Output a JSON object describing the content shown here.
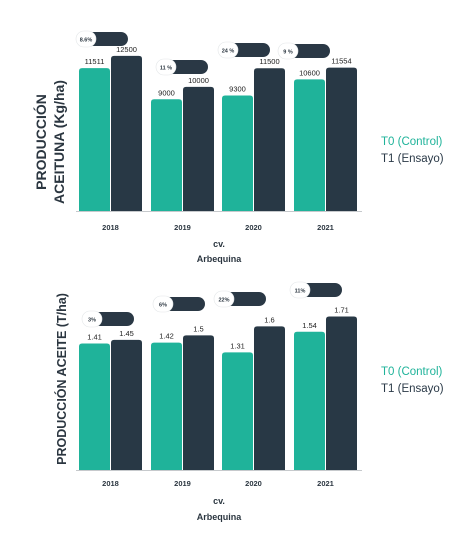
{
  "colors": {
    "t0": "#1fb39a",
    "t1": "#283845",
    "pill": "#2a3845",
    "text": "#2b3640"
  },
  "legend": {
    "t0": "T0 (Control)",
    "t1": "T1 (Ensayo)"
  },
  "chart_data": [
    {
      "type": "bar",
      "ylabel_line1": "PRODUCCIÓN",
      "ylabel_line2": "ACEITUNA (Kg/ha)",
      "xlabel_line1": "cv.",
      "xlabel_line2": "Arbequina",
      "categories": [
        "2018",
        "2019",
        "2020",
        "2021"
      ],
      "series": [
        {
          "name": "T0 (Control)",
          "values": [
            11511,
            9000,
            9300,
            10600
          ],
          "labels": [
            "11511",
            "9000",
            "9300",
            "10600"
          ]
        },
        {
          "name": "T1 (Ensayo)",
          "values": [
            12500,
            10000,
            11500,
            11554
          ],
          "labels": [
            "12500",
            "10000",
            "11500",
            "11554"
          ]
        }
      ],
      "increments": [
        "8.6%",
        "11 %",
        "24 %",
        "9 %"
      ]
    },
    {
      "type": "bar",
      "ylabel_line1": "PRODUCCIÓN ACEITE (T/ha)",
      "xlabel_line1": "cv.",
      "xlabel_line2": "Arbequina",
      "categories": [
        "2018",
        "2019",
        "2020",
        "2021"
      ],
      "series": [
        {
          "name": "T0 (Control)",
          "values": [
            1.41,
            1.42,
            1.31,
            1.54
          ],
          "labels": [
            "1.41",
            "1.42",
            "1.31",
            "1.54"
          ]
        },
        {
          "name": "T1 (Ensayo)",
          "values": [
            1.45,
            1.5,
            1.6,
            1.71
          ],
          "labels": [
            "1.45",
            "1.5",
            "1.6",
            "1.71"
          ]
        }
      ],
      "increments": [
        "3%",
        "6%",
        "22%",
        "11%"
      ]
    }
  ]
}
